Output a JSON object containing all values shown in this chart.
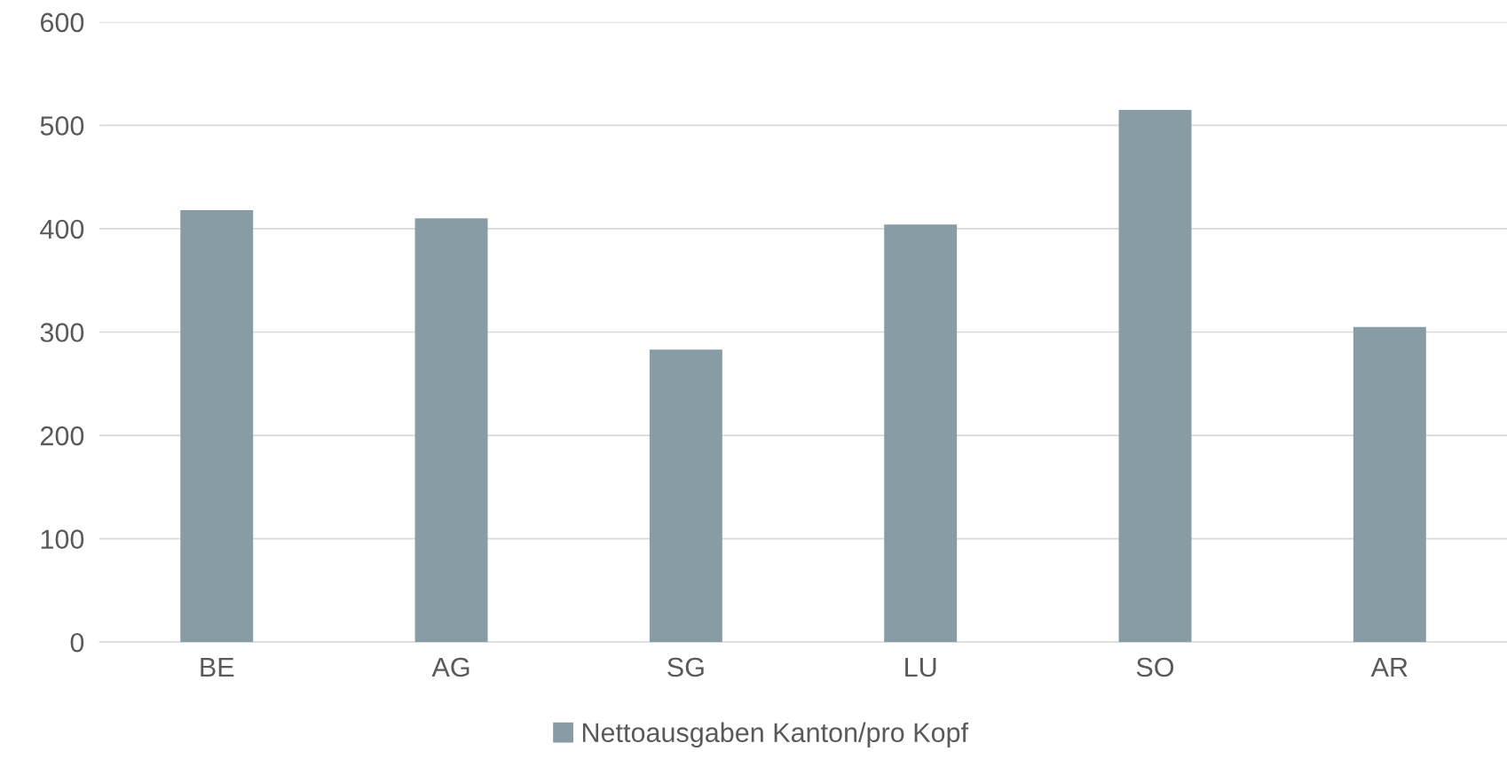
{
  "chart_data": {
    "type": "bar",
    "categories": [
      "BE",
      "AG",
      "SG",
      "LU",
      "SO",
      "AR"
    ],
    "series": [
      {
        "name": "Nettoausgaben Kanton/pro Kopf",
        "color": "#889ca6",
        "values": [
          418,
          410,
          283,
          404,
          515,
          305
        ]
      }
    ],
    "ylim": [
      0,
      600
    ],
    "yticks": [
      0,
      100,
      200,
      300,
      400,
      500,
      600
    ],
    "grid": "y",
    "legend": "bottom"
  }
}
